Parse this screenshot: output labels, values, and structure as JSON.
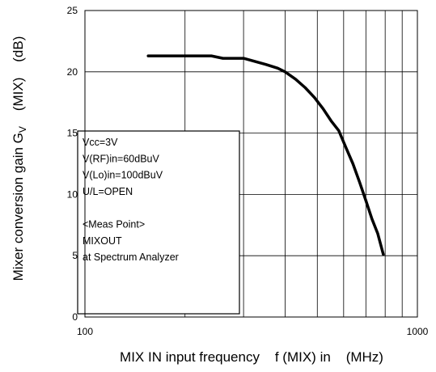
{
  "chart_data": {
    "type": "line",
    "xscale": "log",
    "xlim": [
      100,
      1000
    ],
    "ylim": [
      0,
      25
    ],
    "grid": true,
    "x_ticks": [
      100,
      1000
    ],
    "y_ticks": [
      0,
      5,
      10,
      15,
      20,
      25
    ],
    "xlabel": "MIX IN input frequency    f (MIX) in    (MHz)",
    "ylabel": "Mixer conversion gain G",
    "ylabel_sub": "V",
    "ylabel_suffix": "    (MIX)    (dB)",
    "series": [
      {
        "x": [
          155,
          180,
          200,
          240,
          260,
          300,
          350,
          380,
          400,
          430,
          460,
          490,
          520,
          550,
          580,
          610,
          640,
          670,
          700,
          730,
          760,
          790
        ],
        "y": [
          21.3,
          21.3,
          21.3,
          21.3,
          21.1,
          21.1,
          20.6,
          20.3,
          20.0,
          19.4,
          18.7,
          17.9,
          17.0,
          16.0,
          15.2,
          13.8,
          12.5,
          11.0,
          9.5,
          8.0,
          6.8,
          5.1
        ]
      }
    ],
    "annotation": {
      "lines": [
        "Vcc=3V",
        "V(RF)in=60dBuV",
        "V(Lo)in=100dBuV",
        "U/L=OPEN",
        "",
        "<Meas Point>",
        "MIXOUT",
        "at Spectrum Analyzer"
      ]
    }
  }
}
